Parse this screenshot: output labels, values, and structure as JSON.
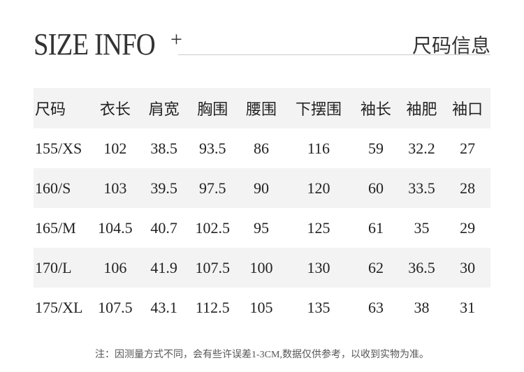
{
  "header": {
    "title": "SIZE INFO",
    "plus": "+",
    "title_cn": "尺码信息"
  },
  "table": {
    "columns": [
      "尺码",
      "衣长",
      "肩宽",
      "胸围",
      "腰围",
      "下摆围",
      "袖长",
      "袖肥",
      "袖口"
    ],
    "rows": [
      [
        "155/XS",
        "102",
        "38.5",
        "93.5",
        "86",
        "116",
        "59",
        "32.2",
        "27"
      ],
      [
        "160/S",
        "103",
        "39.5",
        "97.5",
        "90",
        "120",
        "60",
        "33.5",
        "28"
      ],
      [
        "165/M",
        "104.5",
        "40.7",
        "102.5",
        "95",
        "125",
        "61",
        "35",
        "29"
      ],
      [
        "170/L",
        "106",
        "41.9",
        "107.5",
        "100",
        "130",
        "62",
        "36.5",
        "30"
      ],
      [
        "175/XL",
        "107.5",
        "43.1",
        "112.5",
        "105",
        "135",
        "63",
        "38",
        "31"
      ]
    ]
  },
  "note": "注：因测量方式不同，会有些许误差1-3CM,数据仅供参考，以收到实物为准。",
  "colors": {
    "row_shade": "#f3f3f3",
    "rule": "#cccccc"
  }
}
